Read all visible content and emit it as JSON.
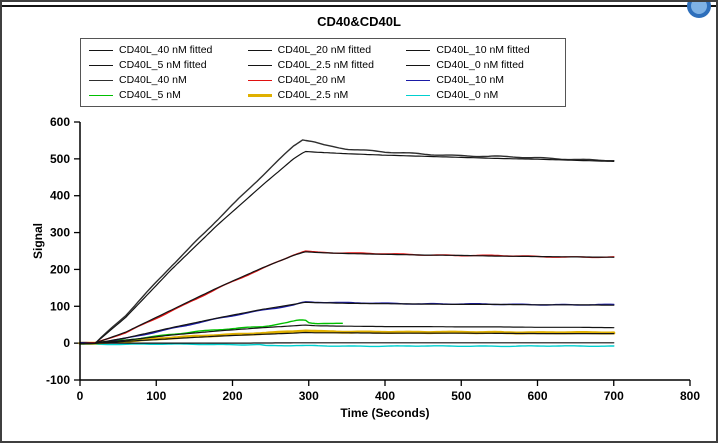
{
  "decor": {
    "accent_circle_color": "#2e6fbb"
  },
  "chart_data": {
    "type": "line",
    "title": "CD40&CD40L",
    "xlabel": "Time (Seconds)",
    "ylabel": "Signal",
    "xlim": [
      0,
      800
    ],
    "ylim": [
      -100,
      600
    ],
    "xticks": [
      0,
      100,
      200,
      300,
      400,
      500,
      600,
      700,
      800
    ],
    "yticks": [
      -100,
      0,
      100,
      200,
      300,
      400,
      500,
      600
    ],
    "grid": false,
    "legend_position": "top",
    "series": [
      {
        "name": "CD40L_40 nM fitted",
        "color": "#141414",
        "width": 1.2,
        "noise": 0,
        "points": [
          [
            0,
            0
          ],
          [
            20,
            0
          ],
          [
            60,
            70
          ],
          [
            120,
            200
          ],
          [
            180,
            320
          ],
          [
            240,
            430
          ],
          [
            280,
            500
          ],
          [
            295,
            520
          ],
          [
            310,
            518
          ],
          [
            350,
            514
          ],
          [
            400,
            510
          ],
          [
            450,
            507
          ],
          [
            500,
            504
          ],
          [
            550,
            501
          ],
          [
            600,
            499
          ],
          [
            650,
            496
          ],
          [
            700,
            493
          ]
        ]
      },
      {
        "name": "CD40L_20 nM fitted",
        "color": "#141414",
        "width": 1.2,
        "noise": 0,
        "points": [
          [
            0,
            0
          ],
          [
            20,
            0
          ],
          [
            60,
            30
          ],
          [
            120,
            90
          ],
          [
            180,
            150
          ],
          [
            240,
            205
          ],
          [
            280,
            238
          ],
          [
            295,
            248
          ],
          [
            310,
            246
          ],
          [
            350,
            243
          ],
          [
            400,
            241
          ],
          [
            450,
            239
          ],
          [
            500,
            238
          ],
          [
            550,
            236
          ],
          [
            600,
            235
          ],
          [
            650,
            234
          ],
          [
            700,
            233
          ]
        ]
      },
      {
        "name": "CD40L_10 nM fitted",
        "color": "#141414",
        "width": 1.2,
        "noise": 0,
        "points": [
          [
            0,
            0
          ],
          [
            20,
            0
          ],
          [
            60,
            14
          ],
          [
            120,
            42
          ],
          [
            180,
            68
          ],
          [
            240,
            92
          ],
          [
            280,
            105
          ],
          [
            295,
            111
          ],
          [
            310,
            110
          ],
          [
            350,
            108
          ],
          [
            400,
            107
          ],
          [
            450,
            106
          ],
          [
            500,
            105
          ],
          [
            550,
            105
          ],
          [
            600,
            104
          ],
          [
            650,
            104
          ],
          [
            700,
            103
          ]
        ]
      },
      {
        "name": "CD40L_5 nM fitted",
        "color": "#141414",
        "width": 1.2,
        "noise": 0,
        "points": [
          [
            0,
            0
          ],
          [
            20,
            0
          ],
          [
            60,
            8
          ],
          [
            120,
            22
          ],
          [
            180,
            33
          ],
          [
            240,
            42
          ],
          [
            280,
            47
          ],
          [
            295,
            49
          ],
          [
            310,
            47
          ],
          [
            350,
            46
          ],
          [
            400,
            45
          ],
          [
            450,
            45
          ],
          [
            500,
            44
          ],
          [
            550,
            44
          ],
          [
            600,
            43
          ],
          [
            650,
            43
          ],
          [
            700,
            42
          ]
        ]
      },
      {
        "name": "CD40L_2.5 nM fitted",
        "color": "#141414",
        "width": 1.2,
        "noise": 0,
        "points": [
          [
            0,
            0
          ],
          [
            20,
            0
          ],
          [
            60,
            5
          ],
          [
            120,
            12
          ],
          [
            180,
            19
          ],
          [
            240,
            24
          ],
          [
            280,
            27
          ],
          [
            295,
            29
          ],
          [
            310,
            28
          ],
          [
            350,
            28
          ],
          [
            400,
            27
          ],
          [
            500,
            27
          ],
          [
            600,
            26
          ],
          [
            700,
            26
          ]
        ]
      },
      {
        "name": "CD40L_0 nM fitted",
        "color": "#141414",
        "width": 1.2,
        "noise": 0,
        "points": [
          [
            0,
            0
          ],
          [
            100,
            0
          ],
          [
            200,
            0
          ],
          [
            300,
            1
          ],
          [
            400,
            1
          ],
          [
            500,
            1
          ],
          [
            600,
            1
          ],
          [
            700,
            1
          ]
        ]
      },
      {
        "name": "CD40L_40 nM",
        "color": "#2e2e2e",
        "width": 1.4,
        "noise": 2,
        "points": [
          [
            0,
            0
          ],
          [
            20,
            0
          ],
          [
            60,
            75
          ],
          [
            120,
            210
          ],
          [
            180,
            335
          ],
          [
            240,
            455
          ],
          [
            280,
            535
          ],
          [
            292,
            553
          ],
          [
            305,
            548
          ],
          [
            320,
            538
          ],
          [
            350,
            527
          ],
          [
            400,
            518
          ],
          [
            450,
            513
          ],
          [
            500,
            509
          ],
          [
            550,
            506
          ],
          [
            600,
            502
          ],
          [
            650,
            499
          ],
          [
            700,
            496
          ]
        ]
      },
      {
        "name": "CD40L_20 nM",
        "color": "#e01010",
        "width": 1.4,
        "noise": 1.5,
        "points": [
          [
            0,
            0
          ],
          [
            20,
            0
          ],
          [
            60,
            28
          ],
          [
            120,
            88
          ],
          [
            180,
            148
          ],
          [
            240,
            203
          ],
          [
            280,
            240
          ],
          [
            295,
            250
          ],
          [
            310,
            247
          ],
          [
            350,
            244
          ],
          [
            400,
            242
          ],
          [
            450,
            240
          ],
          [
            500,
            238
          ],
          [
            550,
            237
          ],
          [
            600,
            235
          ],
          [
            650,
            234
          ],
          [
            700,
            233
          ]
        ]
      },
      {
        "name": "CD40L_10 nM",
        "color": "#1a1aa6",
        "width": 1.4,
        "noise": 1.5,
        "points": [
          [
            0,
            0
          ],
          [
            20,
            0
          ],
          [
            60,
            13
          ],
          [
            120,
            40
          ],
          [
            180,
            66
          ],
          [
            240,
            90
          ],
          [
            280,
            104
          ],
          [
            295,
            112
          ],
          [
            310,
            111
          ],
          [
            350,
            109
          ],
          [
            400,
            108
          ],
          [
            450,
            107
          ],
          [
            500,
            106
          ],
          [
            550,
            105
          ],
          [
            600,
            105
          ],
          [
            650,
            104
          ],
          [
            700,
            104
          ]
        ]
      },
      {
        "name": "CD40L_5 nM",
        "color": "#00c000",
        "width": 1.4,
        "noise": 1.5,
        "points": [
          [
            0,
            0
          ],
          [
            20,
            0
          ],
          [
            60,
            9
          ],
          [
            120,
            24
          ],
          [
            180,
            36
          ],
          [
            240,
            46
          ],
          [
            270,
            55
          ],
          [
            285,
            62
          ],
          [
            295,
            64
          ],
          [
            300,
            56
          ],
          [
            310,
            53
          ],
          [
            330,
            52
          ],
          [
            345,
            53
          ]
        ]
      },
      {
        "name": "CD40L_2.5 nM",
        "color": "#e0b000",
        "width": 3,
        "noise": 1,
        "points": [
          [
            0,
            0
          ],
          [
            20,
            0
          ],
          [
            60,
            6
          ],
          [
            120,
            14
          ],
          [
            180,
            21
          ],
          [
            240,
            27
          ],
          [
            280,
            31
          ],
          [
            295,
            33
          ],
          [
            310,
            31
          ],
          [
            350,
            30
          ],
          [
            400,
            30
          ],
          [
            450,
            29
          ],
          [
            500,
            29
          ],
          [
            550,
            29
          ],
          [
            600,
            28
          ],
          [
            650,
            28
          ],
          [
            700,
            28
          ]
        ]
      },
      {
        "name": "CD40L_0 nM",
        "color": "#00d0d0",
        "width": 1.4,
        "noise": 1,
        "points": [
          [
            0,
            -3
          ],
          [
            50,
            -3
          ],
          [
            100,
            -3
          ],
          [
            150,
            -3
          ],
          [
            200,
            -4
          ],
          [
            235,
            -4
          ],
          [
            245,
            -7
          ],
          [
            300,
            -7
          ],
          [
            350,
            -8
          ],
          [
            400,
            -8
          ],
          [
            450,
            -8
          ],
          [
            500,
            -8
          ],
          [
            550,
            -8
          ],
          [
            600,
            -8
          ],
          [
            650,
            -8
          ],
          [
            700,
            -8
          ]
        ]
      }
    ]
  }
}
